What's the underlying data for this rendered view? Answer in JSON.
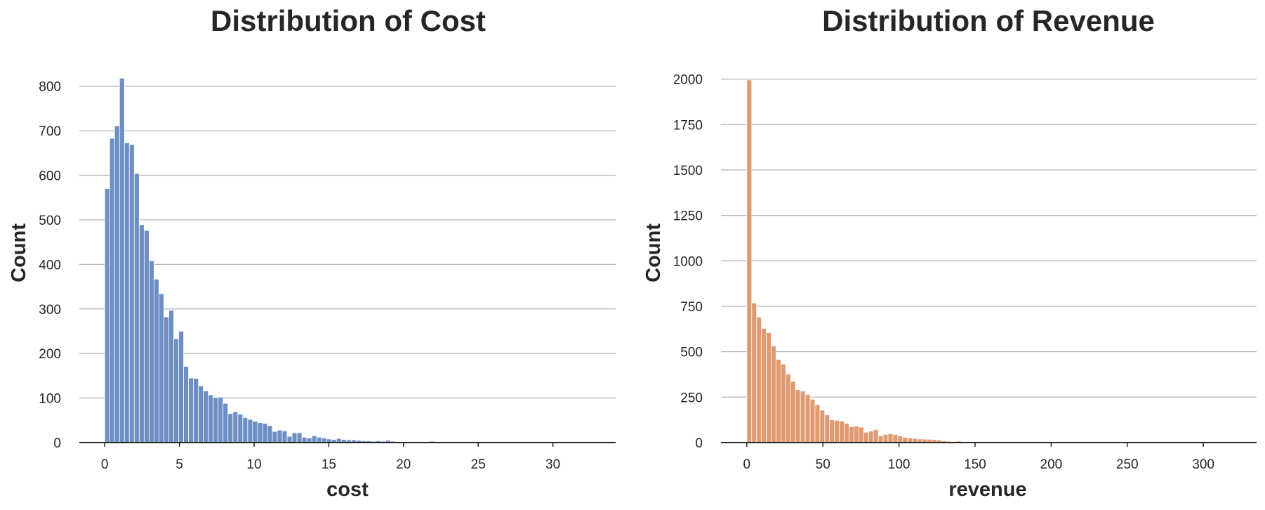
{
  "chart_data": [
    {
      "type": "bar",
      "title": "Distribution of Cost",
      "xlabel": "cost",
      "ylabel": "Count",
      "color": "#6e8fc4",
      "xlim": [
        -1.7,
        34.2
      ],
      "ylim": [
        0,
        820
      ],
      "xticks": [
        0,
        5,
        10,
        15,
        20,
        25,
        30
      ],
      "yticks": [
        0,
        100,
        200,
        300,
        400,
        500,
        600,
        700,
        800
      ],
      "grid": "horizontal",
      "bin_start": 0,
      "bin_width": 0.33,
      "values": [
        570,
        683,
        711,
        818,
        673,
        669,
        604,
        489,
        476,
        408,
        367,
        334,
        282,
        297,
        233,
        250,
        171,
        145,
        144,
        127,
        116,
        107,
        101,
        102,
        88,
        65,
        69,
        64,
        56,
        52,
        48,
        45,
        43,
        38,
        25,
        28,
        26,
        14,
        22,
        22,
        12,
        10,
        15,
        12,
        10,
        8,
        7,
        9,
        7,
        6,
        6,
        5,
        4,
        4,
        3,
        4,
        3,
        5,
        3,
        2,
        2,
        2,
        2,
        2,
        2,
        2,
        3,
        2,
        1,
        1,
        1,
        1,
        1,
        1,
        1,
        1,
        1,
        1,
        1,
        1,
        1,
        1,
        1,
        1,
        1,
        1,
        1,
        1,
        1,
        1,
        0,
        0,
        0,
        0,
        0,
        0,
        0,
        0,
        0,
        0
      ]
    },
    {
      "type": "bar",
      "title": "Distribution of Revenue",
      "xlabel": "revenue",
      "ylabel": "Count",
      "color": "#e09a72",
      "xlim": [
        -17,
        335
      ],
      "ylim": [
        0,
        2010
      ],
      "xticks": [
        0,
        50,
        100,
        150,
        200,
        250,
        300
      ],
      "yticks": [
        0,
        250,
        500,
        750,
        1000,
        1250,
        1500,
        1750,
        2000
      ],
      "grid": "horizontal",
      "bin_start": 0,
      "bin_width": 3.2,
      "values": [
        1995,
        768,
        690,
        628,
        605,
        532,
        458,
        432,
        376,
        336,
        291,
        283,
        265,
        238,
        208,
        178,
        152,
        125,
        122,
        118,
        105,
        87,
        90,
        85,
        57,
        63,
        72,
        37,
        45,
        49,
        45,
        36,
        28,
        25,
        23,
        20,
        19,
        18,
        17,
        14,
        9,
        7,
        6,
        8,
        5,
        4,
        4,
        3,
        3,
        3,
        3,
        2,
        2,
        2,
        2,
        2,
        2,
        2,
        2,
        2,
        1,
        1,
        1,
        1,
        1,
        1,
        1,
        1,
        1,
        1,
        1,
        1,
        1,
        1,
        1,
        1,
        1,
        1,
        1,
        1,
        1,
        1,
        1,
        1,
        1,
        1,
        1,
        1,
        1,
        1,
        1,
        1,
        1,
        1,
        1,
        1,
        1,
        1,
        1,
        1
      ]
    }
  ]
}
